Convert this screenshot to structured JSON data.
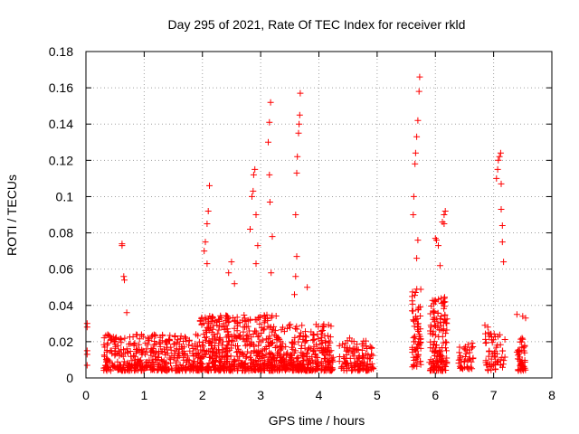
{
  "chart_data": {
    "type": "scatter",
    "title": "Day 295 of 2021, Rate Of TEC Index for receiver rkld",
    "xlabel": "GPS time / hours",
    "ylabel": "ROTI / TECUs",
    "xlim": [
      0,
      8
    ],
    "ylim": [
      0,
      0.18
    ],
    "x_ticks": [
      0,
      1,
      2,
      3,
      4,
      5,
      6,
      7,
      8
    ],
    "x_tick_labels": [
      "0",
      "1",
      "2",
      "3",
      "4",
      "5",
      "6",
      "7",
      "8"
    ],
    "y_ticks": [
      0,
      0.02,
      0.04,
      0.06,
      0.08,
      0.1,
      0.12,
      0.14,
      0.16,
      0.18
    ],
    "y_tick_labels": [
      "0",
      "0.02",
      "0.04",
      "0.06",
      "0.08",
      "0.1",
      "0.12",
      "0.14",
      "0.16",
      "0.18"
    ],
    "grid": true,
    "marker": "+",
    "colors": {
      "points": "#ff0000",
      "grid": "#a0a0a0",
      "axes": "#000000"
    },
    "series": [
      {
        "name": "ROTI",
        "points": [
          [
            0.02,
            0.03
          ],
          [
            0.02,
            0.028
          ],
          [
            0.02,
            0.015
          ],
          [
            0.02,
            0.013
          ],
          [
            0.02,
            0.007
          ],
          [
            0.62,
            0.074
          ],
          [
            0.62,
            0.073
          ],
          [
            0.65,
            0.056
          ],
          [
            0.66,
            0.054
          ],
          [
            0.7,
            0.036
          ],
          [
            2.03,
            0.07
          ],
          [
            2.05,
            0.075
          ],
          [
            2.08,
            0.085
          ],
          [
            2.1,
            0.092
          ],
          [
            2.12,
            0.106
          ],
          [
            2.08,
            0.063
          ],
          [
            2.5,
            0.064
          ],
          [
            2.45,
            0.058
          ],
          [
            2.55,
            0.052
          ],
          [
            2.82,
            0.082
          ],
          [
            2.85,
            0.1
          ],
          [
            2.87,
            0.103
          ],
          [
            2.88,
            0.112
          ],
          [
            2.9,
            0.115
          ],
          [
            2.92,
            0.09
          ],
          [
            2.95,
            0.073
          ],
          [
            2.92,
            0.063
          ],
          [
            3.13,
            0.13
          ],
          [
            3.15,
            0.141
          ],
          [
            3.17,
            0.152
          ],
          [
            3.15,
            0.112
          ],
          [
            3.16,
            0.097
          ],
          [
            3.2,
            0.078
          ],
          [
            3.18,
            0.058
          ],
          [
            3.6,
            0.09
          ],
          [
            3.62,
            0.113
          ],
          [
            3.63,
            0.122
          ],
          [
            3.65,
            0.135
          ],
          [
            3.66,
            0.14
          ],
          [
            3.67,
            0.145
          ],
          [
            3.68,
            0.157
          ],
          [
            3.62,
            0.067
          ],
          [
            3.6,
            0.056
          ],
          [
            3.58,
            0.046
          ],
          [
            3.8,
            0.05
          ],
          [
            5.62,
            0.09
          ],
          [
            5.63,
            0.1
          ],
          [
            5.65,
            0.118
          ],
          [
            5.66,
            0.124
          ],
          [
            5.68,
            0.133
          ],
          [
            5.7,
            0.142
          ],
          [
            5.72,
            0.158
          ],
          [
            5.73,
            0.166
          ],
          [
            5.7,
            0.076
          ],
          [
            5.68,
            0.066
          ],
          [
            6.0,
            0.077
          ],
          [
            6.02,
            0.076
          ],
          [
            6.05,
            0.073
          ],
          [
            6.08,
            0.062
          ],
          [
            6.12,
            0.086
          ],
          [
            6.15,
            0.09
          ],
          [
            6.17,
            0.092
          ],
          [
            6.15,
            0.085
          ],
          [
            7.05,
            0.11
          ],
          [
            7.07,
            0.115
          ],
          [
            7.08,
            0.12
          ],
          [
            7.1,
            0.122
          ],
          [
            7.12,
            0.124
          ],
          [
            7.13,
            0.107
          ],
          [
            7.13,
            0.093
          ],
          [
            7.15,
            0.084
          ],
          [
            7.15,
            0.075
          ],
          [
            7.17,
            0.064
          ],
          [
            6.85,
            0.029
          ],
          [
            6.9,
            0.028
          ],
          [
            7.4,
            0.035
          ],
          [
            7.5,
            0.034
          ],
          [
            7.55,
            0.033
          ]
        ]
      }
    ]
  }
}
